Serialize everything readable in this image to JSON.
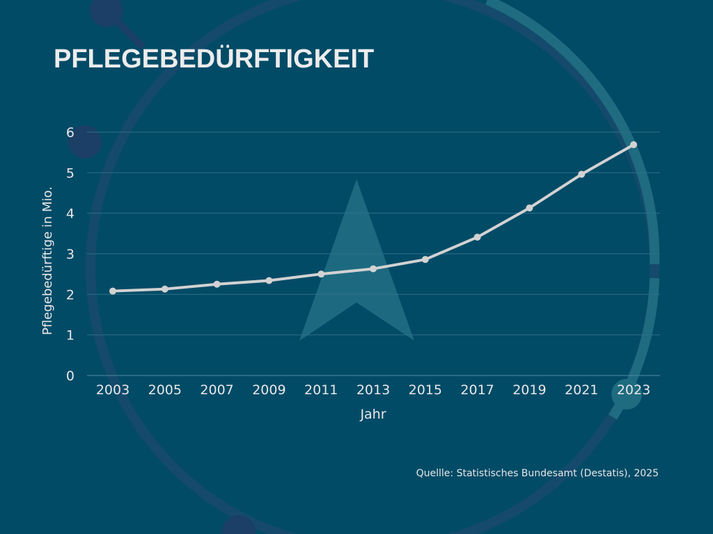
{
  "title": "PFLEGEBEDÜRFTIGKEIT",
  "source": "Quellle: Statistisches Bundesamt (Destatis), 2025",
  "colors": {
    "background": "#024b67",
    "line": "#d2d2d2",
    "grid": "#2e6f88"
  },
  "chart_data": {
    "type": "line",
    "title": "PFLEGEBEDÜRFTIGKEIT",
    "xlabel": "Jahr",
    "ylabel": "Pflegebedürftige in Mio.",
    "x": [
      "2003",
      "2005",
      "2007",
      "2009",
      "2011",
      "2013",
      "2015",
      "2017",
      "2019",
      "2021",
      "2023"
    ],
    "series": [
      {
        "name": "Pflegebedürftige",
        "values": [
          2.08,
          2.13,
          2.25,
          2.34,
          2.5,
          2.63,
          2.86,
          3.41,
          4.13,
          4.96,
          5.69
        ]
      }
    ],
    "yticks": [
      "0",
      "1",
      "2",
      "3",
      "4",
      "5",
      "6"
    ],
    "ylim": [
      0,
      6
    ],
    "grid": true
  }
}
